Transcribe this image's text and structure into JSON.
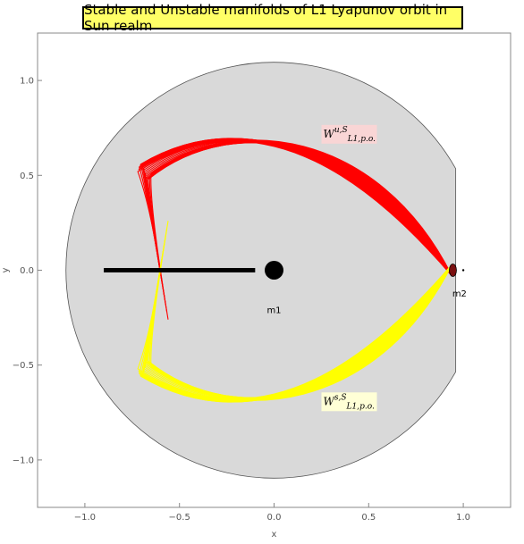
{
  "chart_data": {
    "type": "scatter",
    "title": "Stable and Unstable manifolds of L1 Lyapunov orbit in Sun realm",
    "xlabel": "x",
    "ylabel": "y",
    "xlim": [
      -1.25,
      1.25
    ],
    "ylim": [
      -1.25,
      1.25
    ],
    "xticks": [
      -1.0,
      -0.5,
      0.0,
      0.5,
      1.0
    ],
    "xtick_labels": [
      "−1.0",
      "−0.5",
      "0.0",
      "0.5",
      "1.0"
    ],
    "yticks": [
      -1.0,
      -0.5,
      0.0,
      0.5,
      1.0
    ],
    "ytick_labels": [
      "−1.0",
      "−0.5",
      "0.0",
      "0.5",
      "1.0"
    ],
    "grid": false,
    "forbidden_region": {
      "outer_radius": 1.1,
      "inner_radius": 0.95,
      "center": [
        0.0,
        0.0
      ],
      "neck_x": 0.96
    },
    "bodies": [
      {
        "name": "m1",
        "x": 0.0,
        "y": 0.0
      },
      {
        "name": "m2",
        "x": 1.0,
        "y": 0.0
      }
    ],
    "segment": {
      "x1": -0.9,
      "x2": -0.1,
      "y": 0.0
    },
    "manifolds": [
      {
        "label_main": "W",
        "label_sup": "u,S",
        "label_sub": "L1,p.o.",
        "color": "#ff0000",
        "label_bg": "#f9d5d5",
        "label_x": 0.26,
        "label_y": 0.7,
        "sign": 1,
        "count": 28
      },
      {
        "label_main": "W",
        "label_sup": "s,S",
        "label_sub": "L1,p.o.",
        "color": "#ffff00",
        "label_bg": "#ffffd6",
        "label_x": 0.26,
        "label_y": -0.71,
        "sign": -1,
        "count": 28
      }
    ],
    "colors": {
      "region_fill": "#d9d9d9",
      "region_stroke": "#555555",
      "frame": "#888888",
      "bodies": "#000000"
    }
  }
}
